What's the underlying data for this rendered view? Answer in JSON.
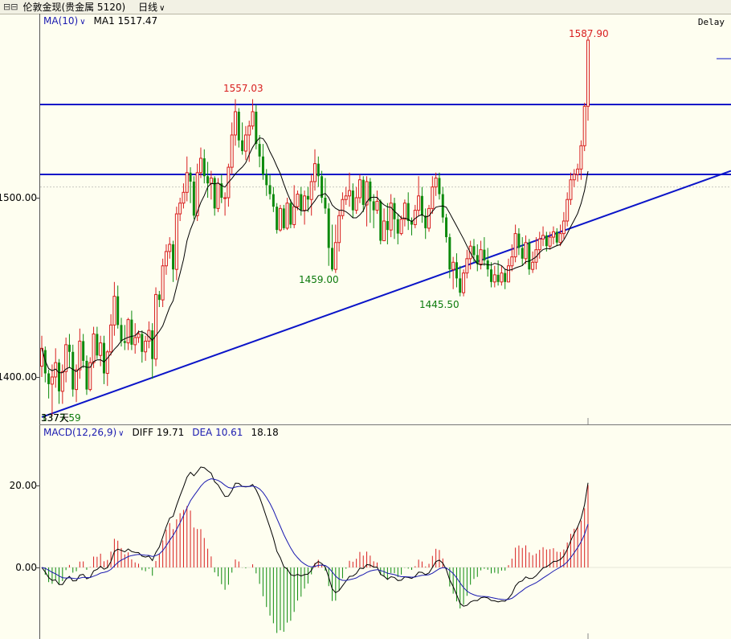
{
  "titlebar": {
    "icon": "chart-icon",
    "icon_glyph": "⊟⊟",
    "instrument": "伦敦金现(贵金属 5120)",
    "period": "日线",
    "chevron": "∨"
  },
  "delay_label": "Delay",
  "ma_legend": {
    "name": "MA(10)",
    "chevron": "∨",
    "value": "MA1 1517.47"
  },
  "macd_legend": {
    "name": "MACD(12,26,9)",
    "chevron": "∨",
    "diff": "DIFF 19.71",
    "dea": "DEA 10.61",
    "macd": "18.18"
  },
  "price_axis": {
    "labels": [
      "1500.00",
      "1400.00"
    ]
  },
  "macd_axis": {
    "labels": [
      "20.00",
      "0.00"
    ]
  },
  "annotations": {
    "high": "1587.90",
    "prev_high": "1557.03",
    "low1": "1459.00",
    "low2": "1445.50",
    "start_low": "1377.59",
    "start_tag": "337天"
  },
  "colors": {
    "up": "#d81e1e",
    "down": "#0c8a0c",
    "trendline": "#0a14c8",
    "ma": "#000000",
    "dea": "#1a1ab0"
  },
  "chart_data": [
    {
      "type": "candlestick",
      "title": "",
      "ylim": [
        1370,
        1605
      ],
      "horizontal_levels": [
        1552,
        1513
      ],
      "reference_level": 1506,
      "trendline": {
        "from": [
          0,
          1377.59
        ],
        "to": [
          166,
          1492
        ]
      },
      "candles": [
        [
          1406,
          1416,
          1423,
          1400
        ],
        [
          1415,
          1402,
          1417,
          1397
        ],
        [
          1402,
          1396,
          1404,
          1388
        ],
        [
          1396,
          1400,
          1407,
          1378
        ],
        [
          1400,
          1408,
          1416,
          1394
        ],
        [
          1408,
          1392,
          1410,
          1385
        ],
        [
          1392,
          1403,
          1407,
          1385
        ],
        [
          1403,
          1418,
          1422,
          1397
        ],
        [
          1418,
          1414,
          1424,
          1405
        ],
        [
          1414,
          1393,
          1418,
          1389
        ],
        [
          1393,
          1404,
          1407,
          1386
        ],
        [
          1404,
          1420,
          1427,
          1399
        ],
        [
          1420,
          1409,
          1424,
          1405
        ],
        [
          1409,
          1393,
          1412,
          1390
        ],
        [
          1393,
          1408,
          1411,
          1392
        ],
        [
          1408,
          1424,
          1428,
          1405
        ],
        [
          1424,
          1412,
          1428,
          1410
        ],
        [
          1412,
          1419,
          1423,
          1406
        ],
        [
          1419,
          1402,
          1423,
          1396
        ],
        [
          1402,
          1414,
          1415,
          1395
        ],
        [
          1414,
          1429,
          1435,
          1412
        ],
        [
          1429,
          1445,
          1453,
          1423
        ],
        [
          1445,
          1429,
          1451,
          1427
        ],
        [
          1429,
          1420,
          1433,
          1417
        ],
        [
          1420,
          1419,
          1429,
          1415
        ],
        [
          1419,
          1432,
          1433,
          1415
        ],
        [
          1432,
          1418,
          1437,
          1415
        ],
        [
          1418,
          1422,
          1430,
          1413
        ],
        [
          1422,
          1424,
          1426,
          1419
        ],
        [
          1424,
          1414,
          1426,
          1408
        ],
        [
          1414,
          1420,
          1423,
          1409
        ],
        [
          1420,
          1426,
          1431,
          1416
        ],
        [
          1426,
          1410,
          1430,
          1399
        ],
        [
          1410,
          1446,
          1450,
          1406
        ],
        [
          1446,
          1443,
          1448,
          1439
        ],
        [
          1443,
          1462,
          1466,
          1439
        ],
        [
          1462,
          1470,
          1474,
          1457
        ],
        [
          1470,
          1474,
          1478,
          1466
        ],
        [
          1474,
          1460,
          1476,
          1453
        ],
        [
          1460,
          1491,
          1495,
          1454
        ],
        [
          1491,
          1497,
          1500,
          1487
        ],
        [
          1497,
          1503,
          1508,
          1494
        ],
        [
          1503,
          1514,
          1523,
          1498
        ],
        [
          1514,
          1509,
          1517,
          1497
        ],
        [
          1509,
          1490,
          1512,
          1488
        ],
        [
          1490,
          1514,
          1519,
          1487
        ],
        [
          1514,
          1522,
          1528,
          1511
        ],
        [
          1522,
          1512,
          1527,
          1508
        ],
        [
          1512,
          1508,
          1520,
          1500
        ],
        [
          1508,
          1511,
          1515,
          1499
        ],
        [
          1511,
          1494,
          1512,
          1490
        ],
        [
          1494,
          1508,
          1511,
          1492
        ],
        [
          1508,
          1500,
          1513,
          1497
        ],
        [
          1500,
          1500,
          1503,
          1490
        ],
        [
          1500,
          1517,
          1519,
          1495
        ],
        [
          1517,
          1535,
          1542,
          1513
        ],
        [
          1535,
          1548,
          1555,
          1529
        ],
        [
          1548,
          1532,
          1550,
          1528
        ],
        [
          1532,
          1526,
          1542,
          1524
        ],
        [
          1526,
          1535,
          1540,
          1521
        ],
        [
          1535,
          1540,
          1543,
          1520
        ],
        [
          1540,
          1548,
          1555,
          1538
        ],
        [
          1548,
          1530,
          1552,
          1527
        ],
        [
          1530,
          1523,
          1535,
          1517
        ],
        [
          1523,
          1513,
          1530,
          1510
        ],
        [
          1513,
          1507,
          1516,
          1501
        ],
        [
          1507,
          1502,
          1513,
          1499
        ],
        [
          1502,
          1495,
          1506,
          1492
        ],
        [
          1495,
          1482,
          1497,
          1480
        ],
        [
          1482,
          1494,
          1496,
          1481
        ],
        [
          1494,
          1483,
          1496,
          1482
        ],
        [
          1483,
          1497,
          1500,
          1482
        ],
        [
          1497,
          1485,
          1499,
          1483
        ],
        [
          1485,
          1495,
          1507,
          1483
        ],
        [
          1495,
          1502,
          1504,
          1493
        ],
        [
          1502,
          1493,
          1506,
          1490
        ],
        [
          1493,
          1501,
          1504,
          1485
        ],
        [
          1501,
          1499,
          1506,
          1492
        ],
        [
          1499,
          1509,
          1513,
          1490
        ],
        [
          1509,
          1519,
          1527,
          1504
        ],
        [
          1519,
          1512,
          1523,
          1506
        ],
        [
          1512,
          1500,
          1515,
          1497
        ],
        [
          1500,
          1494,
          1511,
          1491
        ],
        [
          1494,
          1472,
          1497,
          1462
        ],
        [
          1472,
          1460,
          1485,
          1459
        ],
        [
          1460,
          1475,
          1485,
          1458
        ],
        [
          1475,
          1490,
          1493,
          1470
        ],
        [
          1490,
          1499,
          1503,
          1488
        ],
        [
          1499,
          1501,
          1506,
          1496
        ],
        [
          1501,
          1504,
          1514,
          1495
        ],
        [
          1504,
          1493,
          1508,
          1489
        ],
        [
          1493,
          1500,
          1506,
          1491
        ],
        [
          1500,
          1510,
          1513,
          1497
        ],
        [
          1510,
          1496,
          1512,
          1492
        ],
        [
          1496,
          1509,
          1512,
          1484
        ],
        [
          1509,
          1498,
          1511,
          1486
        ],
        [
          1498,
          1493,
          1502,
          1483
        ],
        [
          1493,
          1498,
          1504,
          1491
        ],
        [
          1498,
          1476,
          1499,
          1474
        ],
        [
          1476,
          1487,
          1494,
          1476
        ],
        [
          1487,
          1482,
          1497,
          1474
        ],
        [
          1482,
          1497,
          1502,
          1478
        ],
        [
          1497,
          1488,
          1500,
          1477
        ],
        [
          1488,
          1480,
          1491,
          1474
        ],
        [
          1480,
          1488,
          1490,
          1479
        ],
        [
          1488,
          1497,
          1499,
          1484
        ],
        [
          1497,
          1487,
          1503,
          1482
        ],
        [
          1487,
          1485,
          1489,
          1479
        ],
        [
          1485,
          1493,
          1496,
          1483
        ],
        [
          1493,
          1501,
          1512,
          1490
        ],
        [
          1501,
          1490,
          1506,
          1486
        ],
        [
          1490,
          1483,
          1494,
          1477
        ],
        [
          1483,
          1494,
          1496,
          1481
        ],
        [
          1494,
          1506,
          1512,
          1491
        ],
        [
          1506,
          1511,
          1514,
          1501
        ],
        [
          1511,
          1502,
          1514,
          1499
        ],
        [
          1502,
          1489,
          1506,
          1486
        ],
        [
          1489,
          1478,
          1491,
          1475
        ],
        [
          1478,
          1460,
          1480,
          1455
        ],
        [
          1460,
          1464,
          1467,
          1449
        ],
        [
          1464,
          1455,
          1469,
          1450
        ],
        [
          1455,
          1447,
          1462,
          1445
        ],
        [
          1447,
          1458,
          1460,
          1445
        ],
        [
          1458,
          1466,
          1471,
          1455
        ],
        [
          1466,
          1473,
          1476,
          1460
        ],
        [
          1473,
          1468,
          1477,
          1464
        ],
        [
          1468,
          1463,
          1474,
          1459
        ],
        [
          1463,
          1471,
          1476,
          1460
        ],
        [
          1471,
          1465,
          1478,
          1462
        ],
        [
          1465,
          1460,
          1472,
          1456
        ],
        [
          1460,
          1453,
          1464,
          1450
        ],
        [
          1453,
          1457,
          1462,
          1450
        ],
        [
          1457,
          1453,
          1465,
          1451
        ],
        [
          1453,
          1458,
          1462,
          1451
        ],
        [
          1458,
          1453,
          1460,
          1449
        ],
        [
          1453,
          1462,
          1466,
          1453
        ],
        [
          1462,
          1467,
          1474,
          1459
        ],
        [
          1467,
          1480,
          1485,
          1464
        ],
        [
          1480,
          1472,
          1483,
          1468
        ],
        [
          1472,
          1466,
          1478,
          1462
        ],
        [
          1466,
          1475,
          1479,
          1463
        ],
        [
          1475,
          1460,
          1477,
          1457
        ],
        [
          1460,
          1464,
          1470,
          1458
        ],
        [
          1464,
          1471,
          1478,
          1460
        ],
        [
          1471,
          1477,
          1481,
          1466
        ],
        [
          1477,
          1479,
          1484,
          1473
        ],
        [
          1479,
          1473,
          1481,
          1470
        ],
        [
          1473,
          1478,
          1481,
          1471
        ],
        [
          1478,
          1481,
          1484,
          1474
        ],
        [
          1481,
          1475,
          1483,
          1473
        ],
        [
          1475,
          1480,
          1485,
          1473
        ],
        [
          1480,
          1487,
          1492,
          1477
        ],
        [
          1487,
          1499,
          1503,
          1484
        ],
        [
          1499,
          1510,
          1514,
          1496
        ],
        [
          1510,
          1513,
          1516,
          1506
        ],
        [
          1513,
          1516,
          1519,
          1509
        ],
        [
          1516,
          1529,
          1532,
          1510
        ],
        [
          1529,
          1551,
          1553,
          1526
        ],
        [
          1551,
          1587.9,
          1590,
          1543
        ]
      ]
    },
    {
      "type": "macd",
      "title": "",
      "ylim": [
        -20,
        42
      ],
      "diff_last": 19.71,
      "dea_last": 10.61,
      "macd_last": 18.18
    }
  ]
}
